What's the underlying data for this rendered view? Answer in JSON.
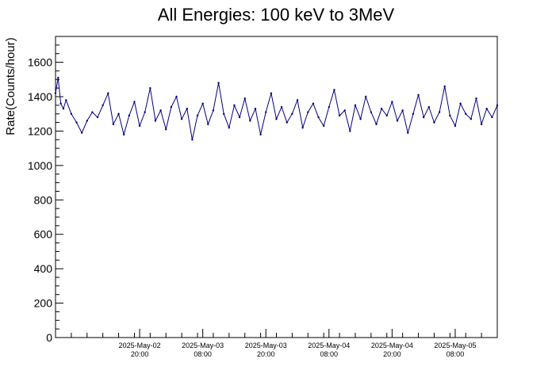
{
  "chart_data": {
    "type": "line",
    "title": "All Energies:  100 keV to 3MeV",
    "xlabel": "",
    "ylabel": "Rate(Counts/hour)",
    "ylim": [
      0,
      1750
    ],
    "yticks": [
      0,
      200,
      400,
      600,
      800,
      1000,
      1200,
      1400,
      1600
    ],
    "xlim": [
      "2025-May-02 04:00",
      "2025-May-05 16:00"
    ],
    "xticks": [
      {
        "date": "2025-May-02",
        "time": "20:00",
        "at": "2025-May-02 20:00"
      },
      {
        "date": "2025-May-03",
        "time": "08:00",
        "at": "2025-May-03 08:00"
      },
      {
        "date": "2025-May-03",
        "time": "20:00",
        "at": "2025-May-03 20:00"
      },
      {
        "date": "2025-May-04",
        "time": "08:00",
        "at": "2025-May-04 08:00"
      },
      {
        "date": "2025-May-04",
        "time": "20:00",
        "at": "2025-May-04 20:00"
      },
      {
        "date": "2025-May-05",
        "time": "08:00",
        "at": "2025-May-05 08:00"
      }
    ],
    "series": [
      {
        "color": "#00007f",
        "points": [
          [
            "2025-May-02 04:00",
            1420
          ],
          [
            "2025-May-02 04:30",
            1510
          ],
          [
            "2025-May-02 05:00",
            1360
          ],
          [
            "2025-May-02 05:30",
            1330
          ],
          [
            "2025-May-02 06:00",
            1380
          ],
          [
            "2025-May-02 07:00",
            1300
          ],
          [
            "2025-May-02 08:00",
            1250
          ],
          [
            "2025-May-02 09:00",
            1190
          ],
          [
            "2025-May-02 10:00",
            1260
          ],
          [
            "2025-May-02 11:00",
            1310
          ],
          [
            "2025-May-02 12:00",
            1280
          ],
          [
            "2025-May-02 13:00",
            1350
          ],
          [
            "2025-May-02 14:00",
            1420
          ],
          [
            "2025-May-02 15:00",
            1240
          ],
          [
            "2025-May-02 16:00",
            1300
          ],
          [
            "2025-May-02 17:00",
            1180
          ],
          [
            "2025-May-02 18:00",
            1290
          ],
          [
            "2025-May-02 19:00",
            1370
          ],
          [
            "2025-May-02 20:00",
            1230
          ],
          [
            "2025-May-02 21:00",
            1310
          ],
          [
            "2025-May-02 22:00",
            1450
          ],
          [
            "2025-May-02 23:00",
            1260
          ],
          [
            "2025-May-03 00:00",
            1320
          ],
          [
            "2025-May-03 01:00",
            1210
          ],
          [
            "2025-May-03 02:00",
            1340
          ],
          [
            "2025-May-03 03:00",
            1400
          ],
          [
            "2025-May-03 04:00",
            1270
          ],
          [
            "2025-May-03 05:00",
            1330
          ],
          [
            "2025-May-03 06:00",
            1150
          ],
          [
            "2025-May-03 07:00",
            1290
          ],
          [
            "2025-May-03 08:00",
            1360
          ],
          [
            "2025-May-03 09:00",
            1240
          ],
          [
            "2025-May-03 10:00",
            1320
          ],
          [
            "2025-May-03 11:00",
            1480
          ],
          [
            "2025-May-03 12:00",
            1300
          ],
          [
            "2025-May-03 13:00",
            1220
          ],
          [
            "2025-May-03 14:00",
            1350
          ],
          [
            "2025-May-03 15:00",
            1280
          ],
          [
            "2025-May-03 16:00",
            1390
          ],
          [
            "2025-May-03 17:00",
            1260
          ],
          [
            "2025-May-03 18:00",
            1330
          ],
          [
            "2025-May-03 19:00",
            1180
          ],
          [
            "2025-May-03 20:00",
            1310
          ],
          [
            "2025-May-03 21:00",
            1420
          ],
          [
            "2025-May-03 22:00",
            1270
          ],
          [
            "2025-May-03 23:00",
            1340
          ],
          [
            "2025-May-04 00:00",
            1250
          ],
          [
            "2025-May-04 01:00",
            1300
          ],
          [
            "2025-May-04 02:00",
            1380
          ],
          [
            "2025-May-04 03:00",
            1220
          ],
          [
            "2025-May-04 04:00",
            1310
          ],
          [
            "2025-May-04 05:00",
            1360
          ],
          [
            "2025-May-04 06:00",
            1280
          ],
          [
            "2025-May-04 07:00",
            1230
          ],
          [
            "2025-May-04 08:00",
            1340
          ],
          [
            "2025-May-04 09:00",
            1440
          ],
          [
            "2025-May-04 10:00",
            1290
          ],
          [
            "2025-May-04 11:00",
            1320
          ],
          [
            "2025-May-04 12:00",
            1200
          ],
          [
            "2025-May-04 13:00",
            1350
          ],
          [
            "2025-May-04 14:00",
            1270
          ],
          [
            "2025-May-04 15:00",
            1400
          ],
          [
            "2025-May-04 16:00",
            1310
          ],
          [
            "2025-May-04 17:00",
            1240
          ],
          [
            "2025-May-04 18:00",
            1330
          ],
          [
            "2025-May-04 19:00",
            1290
          ],
          [
            "2025-May-04 20:00",
            1370
          ],
          [
            "2025-May-04 21:00",
            1260
          ],
          [
            "2025-May-04 22:00",
            1320
          ],
          [
            "2025-May-04 23:00",
            1190
          ],
          [
            "2025-May-05 00:00",
            1300
          ],
          [
            "2025-May-05 01:00",
            1410
          ],
          [
            "2025-May-05 02:00",
            1280
          ],
          [
            "2025-May-05 03:00",
            1340
          ],
          [
            "2025-May-05 04:00",
            1250
          ],
          [
            "2025-May-05 05:00",
            1310
          ],
          [
            "2025-May-05 06:00",
            1460
          ],
          [
            "2025-May-05 07:00",
            1290
          ],
          [
            "2025-May-05 08:00",
            1230
          ],
          [
            "2025-May-05 09:00",
            1360
          ],
          [
            "2025-May-05 10:00",
            1300
          ],
          [
            "2025-May-05 11:00",
            1270
          ],
          [
            "2025-May-05 12:00",
            1390
          ],
          [
            "2025-May-05 13:00",
            1240
          ],
          [
            "2025-May-05 14:00",
            1330
          ],
          [
            "2025-May-05 15:00",
            1280
          ],
          [
            "2025-May-05 16:00",
            1350
          ]
        ]
      }
    ],
    "grid": false,
    "legend": "none"
  }
}
